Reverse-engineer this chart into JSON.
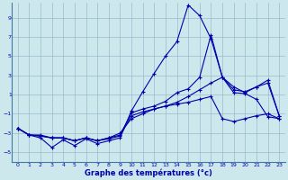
{
  "xlabel": "Graphe des températures (°c)",
  "bg_color": "#cce8ec",
  "line_color": "#0000aa",
  "grid_color": "#99bbcc",
  "xlim": [
    -0.5,
    23.5
  ],
  "ylim": [
    -6.0,
    10.5
  ],
  "yticks": [
    -5,
    -3,
    -1,
    1,
    3,
    5,
    7,
    9
  ],
  "xticks": [
    0,
    1,
    2,
    3,
    4,
    5,
    6,
    7,
    8,
    9,
    10,
    11,
    12,
    13,
    14,
    15,
    16,
    17,
    18,
    19,
    20,
    21,
    22,
    23
  ],
  "curves": [
    {
      "x": [
        0,
        1,
        2,
        3,
        4,
        5,
        6,
        7,
        8,
        9,
        10,
        11,
        12,
        13,
        14,
        15,
        16,
        17,
        18,
        19,
        20,
        21,
        22,
        23
      ],
      "y": [
        -2.5,
        -3.2,
        -3.5,
        -4.5,
        -3.7,
        -4.3,
        -3.6,
        -4.1,
        -3.8,
        -3.5,
        -0.7,
        1.3,
        3.2,
        5.0,
        6.5,
        10.3,
        9.2,
        6.8,
        2.8,
        1.2,
        1.1,
        0.5,
        -1.3,
        -1.5
      ]
    },
    {
      "x": [
        0,
        1,
        2,
        3,
        4,
        5,
        6,
        7,
        8,
        9,
        10,
        11,
        12,
        13,
        14,
        15,
        16,
        17,
        18,
        19,
        20,
        21,
        22,
        23
      ],
      "y": [
        -2.5,
        -3.2,
        -3.3,
        -3.5,
        -3.5,
        -3.8,
        -3.5,
        -3.8,
        -3.5,
        -3.2,
        -0.9,
        -0.5,
        -0.2,
        0.3,
        1.2,
        1.6,
        2.8,
        7.2,
        2.8,
        1.5,
        1.3,
        1.8,
        2.5,
        -1.2
      ]
    },
    {
      "x": [
        0,
        1,
        2,
        3,
        4,
        5,
        6,
        7,
        8,
        9,
        10,
        11,
        12,
        13,
        14,
        15,
        16,
        17,
        18,
        19,
        20,
        21,
        22,
        23
      ],
      "y": [
        -2.5,
        -3.2,
        -3.2,
        -3.5,
        -3.5,
        -3.8,
        -3.5,
        -3.8,
        -3.5,
        -3.0,
        -1.5,
        -1.0,
        -0.5,
        -0.2,
        0.2,
        0.8,
        1.5,
        2.2,
        2.8,
        1.8,
        1.2,
        1.8,
        2.2,
        -1.2
      ]
    },
    {
      "x": [
        0,
        1,
        2,
        3,
        4,
        5,
        6,
        7,
        8,
        9,
        10,
        11,
        12,
        13,
        14,
        15,
        16,
        17,
        18,
        19,
        20,
        21,
        22,
        23
      ],
      "y": [
        -2.5,
        -3.2,
        -3.3,
        -3.5,
        -3.5,
        -3.8,
        -3.5,
        -3.8,
        -3.6,
        -3.3,
        -1.2,
        -0.8,
        -0.5,
        -0.2,
        0.0,
        0.2,
        0.5,
        0.8,
        -1.5,
        -1.8,
        -1.5,
        -1.2,
        -1.0,
        -1.5
      ]
    }
  ]
}
